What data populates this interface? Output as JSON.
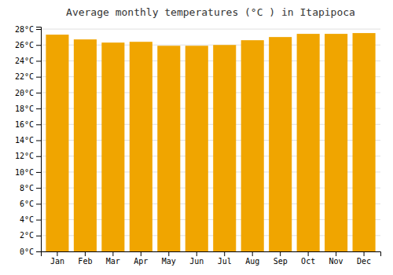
{
  "chart_data": {
    "type": "bar",
    "title": "Average monthly temperatures (°C ) in Itapipoca",
    "categories": [
      "Jan",
      "Feb",
      "Mar",
      "Apr",
      "May",
      "Jun",
      "Jul",
      "Aug",
      "Sep",
      "Oct",
      "Nov",
      "Dec"
    ],
    "values": [
      27.3,
      26.7,
      26.3,
      26.4,
      25.9,
      25.9,
      26.0,
      26.6,
      27.0,
      27.4,
      27.4,
      27.5
    ],
    "color": "#F0A500",
    "ylim": [
      0,
      28.3
    ],
    "yticks": [
      {
        "value": 0,
        "label": "0°C"
      },
      {
        "value": 2,
        "label": "2°C"
      },
      {
        "value": 4,
        "label": "4°C"
      },
      {
        "value": 6,
        "label": "6°C"
      },
      {
        "value": 8,
        "label": "8°C"
      },
      {
        "value": 10,
        "label": "10°C"
      },
      {
        "value": 12,
        "label": "12°C"
      },
      {
        "value": 14,
        "label": "14°C"
      },
      {
        "value": 16,
        "label": "16°C"
      },
      {
        "value": 18,
        "label": "18°C"
      },
      {
        "value": 20,
        "label": "20°C"
      },
      {
        "value": 22,
        "label": "22°C"
      },
      {
        "value": 24,
        "label": "24°C"
      },
      {
        "value": 26,
        "label": "26°C"
      },
      {
        "value": 28,
        "label": "28°C"
      }
    ],
    "grid": true
  }
}
